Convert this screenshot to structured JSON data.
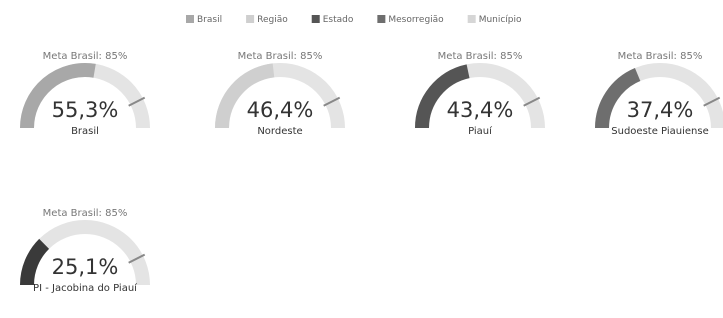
{
  "chart_data": {
    "type": "gauge",
    "legend": [
      {
        "name": "Brasil",
        "color": "#a8a8a8"
      },
      {
        "name": "Região",
        "color": "#cfcfcf"
      },
      {
        "name": "Estado",
        "color": "#555555"
      },
      {
        "name": "Mesorregião",
        "color": "#6e6e6e"
      },
      {
        "name": "Município",
        "color": "#d6d6d6"
      }
    ],
    "categories": [
      "Brasil",
      "Nordeste",
      "Piauí",
      "Sudoeste Piauiense",
      "PI - Jacobina do Piauí"
    ],
    "values": [
      55.3,
      46.4,
      43.4,
      37.4,
      25.1
    ],
    "value_labels": [
      "55,3%",
      "46,4%",
      "43,4%",
      "37,4%",
      "25,1%"
    ],
    "targets": [
      85,
      85,
      85,
      85,
      85
    ],
    "target_labels": [
      "Meta Brasil: 85%",
      "Meta Brasil: 85%",
      "Meta Brasil: 85%",
      "Meta Brasil: 85%",
      "Meta Brasil: 85%"
    ],
    "colors": [
      "#a8a8a8",
      "#cfcfcf",
      "#555555",
      "#6e6e6e",
      "#3a3a3a"
    ],
    "track_color": "#e4e4e4",
    "ylim": [
      0,
      100
    ]
  }
}
